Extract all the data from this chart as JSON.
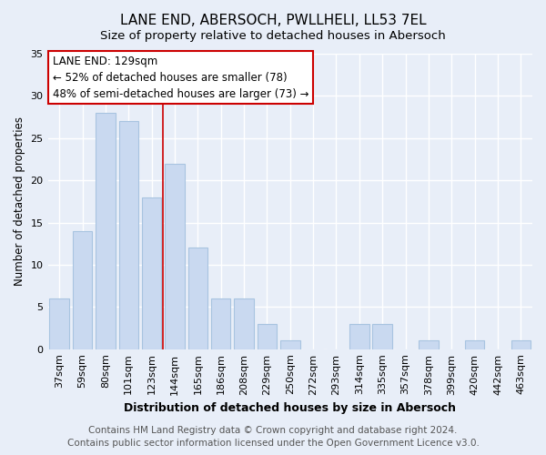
{
  "title": "LANE END, ABERSOCH, PWLLHELI, LL53 7EL",
  "subtitle": "Size of property relative to detached houses in Abersoch",
  "xlabel": "Distribution of detached houses by size in Abersoch",
  "ylabel": "Number of detached properties",
  "bar_labels": [
    "37sqm",
    "59sqm",
    "80sqm",
    "101sqm",
    "123sqm",
    "144sqm",
    "165sqm",
    "186sqm",
    "208sqm",
    "229sqm",
    "250sqm",
    "272sqm",
    "293sqm",
    "314sqm",
    "335sqm",
    "357sqm",
    "378sqm",
    "399sqm",
    "420sqm",
    "442sqm",
    "463sqm"
  ],
  "bar_values": [
    6,
    14,
    28,
    27,
    18,
    22,
    12,
    6,
    6,
    3,
    1,
    0,
    0,
    3,
    3,
    0,
    1,
    0,
    1,
    0,
    1
  ],
  "bar_color": "#c9d9f0",
  "bar_edge_color": "#a8c4e0",
  "vline_x_index": 4.5,
  "vline_color": "#cc0000",
  "annotation_title": "LANE END: 129sqm",
  "annotation_line1": "← 52% of detached houses are smaller (78)",
  "annotation_line2": "48% of semi-detached houses are larger (73) →",
  "annotation_box_color": "#ffffff",
  "annotation_box_edge": "#cc0000",
  "ylim": [
    0,
    35
  ],
  "yticks": [
    0,
    5,
    10,
    15,
    20,
    25,
    30,
    35
  ],
  "footer1": "Contains HM Land Registry data © Crown copyright and database right 2024.",
  "footer2": "Contains public sector information licensed under the Open Government Licence v3.0.",
  "background_color": "#e8eef8",
  "grid_color": "#ffffff",
  "title_fontsize": 11,
  "subtitle_fontsize": 9.5,
  "xlabel_fontsize": 9,
  "ylabel_fontsize": 8.5,
  "tick_fontsize": 8,
  "annotation_fontsize": 8.5,
  "footer_fontsize": 7.5
}
